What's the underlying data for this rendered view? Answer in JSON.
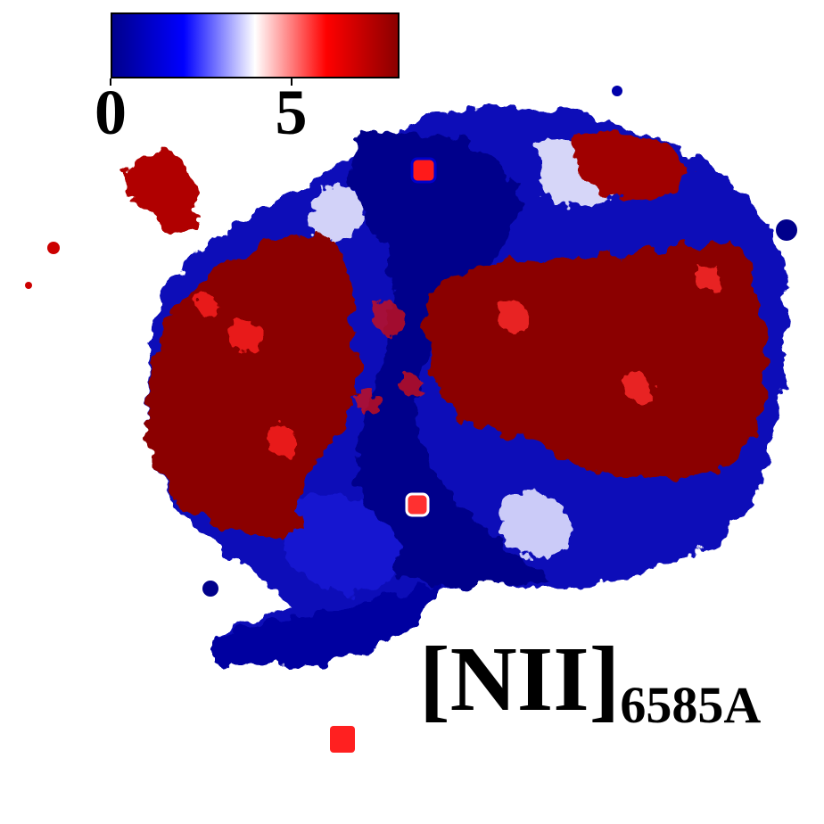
{
  "colorbar": {
    "colors": [
      "#00008b",
      "#0000ff",
      "#ffffff",
      "#ff0000",
      "#8b0000"
    ],
    "ticks": [
      {
        "label": "0",
        "value": 0
      },
      {
        "label": "5",
        "value": 5
      }
    ],
    "range": [
      0,
      8
    ]
  },
  "line_label": {
    "main": "[NII]",
    "sub": "6585A"
  },
  "map": {
    "colors": {
      "deep_blue": "#00008b",
      "blue": "#0000ff",
      "white": "#ffffff",
      "red": "#ff0000",
      "deep_red": "#8b0000"
    }
  }
}
